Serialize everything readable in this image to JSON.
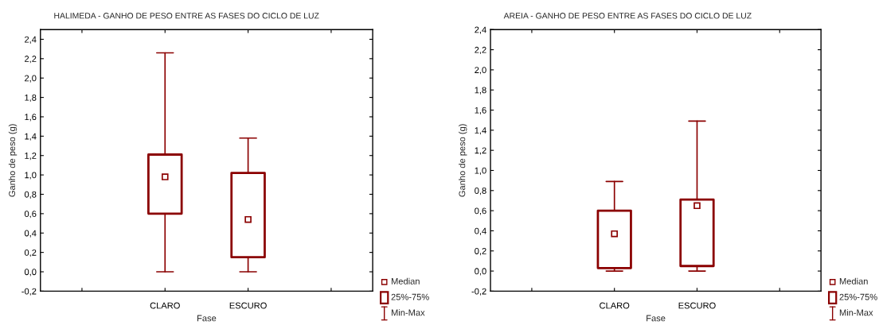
{
  "chart_data": [
    {
      "type": "box",
      "title": "HALIMEDA - GANHO DE PESO ENTRE AS FASES DO CICLO DE LUZ",
      "xlabel": "Fase",
      "ylabel": "Ganho de peso (g)",
      "categories": [
        null,
        "CLARO",
        "ESCURO",
        null
      ],
      "color": "#8b0000",
      "marker": "square",
      "ylim": [
        -0.2,
        2.5
      ],
      "yticks": [
        {
          "value": -0.2,
          "label": "-0,2"
        },
        {
          "value": 0,
          "label": "0,0"
        },
        {
          "value": 0.2,
          "label": "0,2"
        },
        {
          "value": 0.4,
          "label": "0,4"
        },
        {
          "value": 0.6,
          "label": "0,6"
        },
        {
          "value": 0.8,
          "label": "0,8"
        },
        {
          "value": 1.0,
          "label": "1,0"
        },
        {
          "value": 1.2,
          "label": "1,2"
        },
        {
          "value": 1.4,
          "label": "1,4"
        },
        {
          "value": 1.6,
          "label": "1,6"
        },
        {
          "value": 1.8,
          "label": "1,8"
        },
        {
          "value": 2.0,
          "label": "2,0"
        },
        {
          "value": 2.2,
          "label": "2,2"
        },
        {
          "value": 2.4,
          "label": "2,4"
        }
      ],
      "grid": false,
      "boxes": [
        null,
        {
          "low": 0,
          "q1": 0.6,
          "median": 0.98,
          "q3": 1.21,
          "high": 2.26
        },
        {
          "low": 0,
          "q1": 0.15,
          "median": 0.54,
          "q3": 1.02,
          "high": 1.38
        },
        null
      ],
      "annotations": [
        "Median",
        "25%-75%",
        "Min-Max"
      ]
    },
    {
      "type": "box",
      "title": "AREIA - GANHO DE PESO ENTRE AS FASES DO CICLO DE LUZ",
      "xlabel": "Fase",
      "ylabel": "Ganho de peso (g)",
      "categories": [
        null,
        "CLARO",
        "ESCURO",
        null
      ],
      "color": "#8b0000",
      "marker": "square",
      "ylim": [
        -0.2,
        2.4
      ],
      "yticks": [
        {
          "value": -0.2,
          "label": "-0,2"
        },
        {
          "value": 0,
          "label": "0,0"
        },
        {
          "value": 0.2,
          "label": "0,2"
        },
        {
          "value": 0.4,
          "label": "0,4"
        },
        {
          "value": 0.6,
          "label": "0,6"
        },
        {
          "value": 0.8,
          "label": "0,8"
        },
        {
          "value": 1.0,
          "label": "1,0"
        },
        {
          "value": 1.2,
          "label": "1,2"
        },
        {
          "value": 1.4,
          "label": "1,4"
        },
        {
          "value": 1.6,
          "label": "1,6"
        },
        {
          "value": 1.8,
          "label": "1,8"
        },
        {
          "value": 2.0,
          "label": "2,0"
        },
        {
          "value": 2.2,
          "label": "2,2"
        },
        {
          "value": 2.4,
          "label": "2,4"
        }
      ],
      "grid": false,
      "boxes": [
        null,
        {
          "low": 0,
          "q1": 0.03,
          "median": 0.37,
          "q3": 0.6,
          "high": 0.89
        },
        {
          "low": 0,
          "q1": 0.05,
          "median": 0.65,
          "q3": 0.71,
          "high": 1.49
        },
        null
      ],
      "annotations": [
        "Median",
        "25%-75%",
        "Min-Max"
      ]
    }
  ]
}
